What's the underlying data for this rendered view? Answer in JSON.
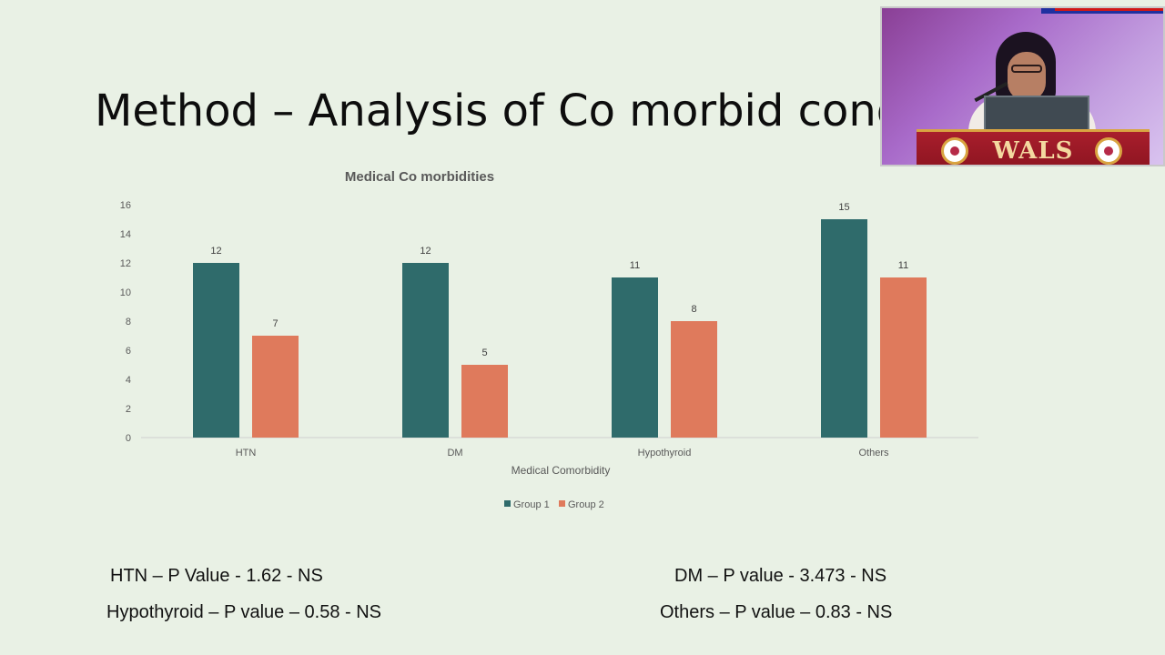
{
  "slide": {
    "title": "Method –  Analysis of Co morbid condi"
  },
  "chart_data": {
    "type": "bar",
    "title": "Medical Co morbidities",
    "xlabel": "Medical Comorbidity",
    "ylabel": "",
    "categories": [
      "HTN",
      "DM",
      "Hypothyroid",
      "Others"
    ],
    "series": [
      {
        "name": "Group 1",
        "values": [
          12,
          12,
          11,
          15
        ],
        "color": "#2f6b6b"
      },
      {
        "name": "Group 2",
        "values": [
          7,
          5,
          8,
          11
        ],
        "color": "#df7a5c"
      }
    ],
    "ylim": [
      0,
      16
    ],
    "yticks": [
      0,
      2,
      4,
      6,
      8,
      10,
      12,
      14,
      16
    ],
    "grid": false,
    "legend": "bottom",
    "data_labels": true
  },
  "stats": {
    "htn": "HTN – P Value  - 1.62 - NS",
    "dm": "DM – P value - 3.473 - NS",
    "hypothyroid": "Hypothyroid – P value – 0.58 - NS",
    "others": "Others  – P value – 0.83 - NS"
  },
  "video_inset": {
    "podium_label": "WALS"
  }
}
